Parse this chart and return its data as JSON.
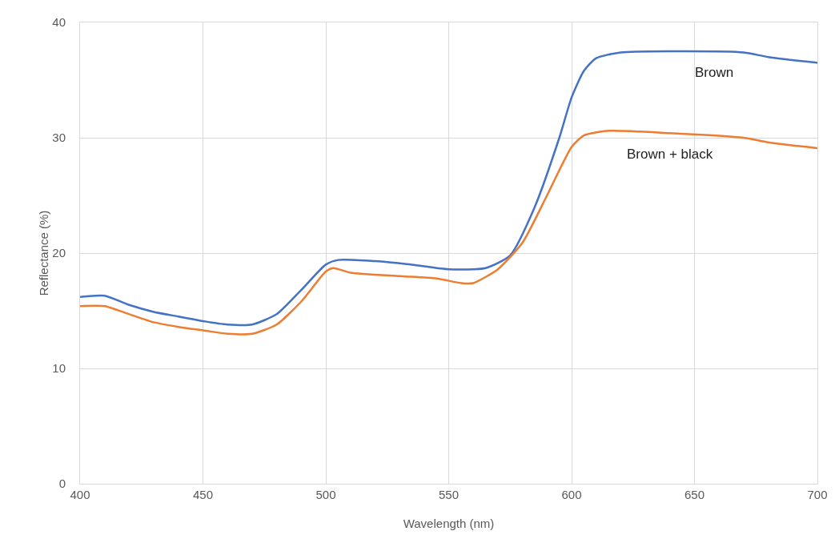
{
  "chart_data": {
    "type": "line",
    "xlabel": "Wavelength (nm)",
    "ylabel": "Reflectance (%)",
    "xlim": [
      400,
      700
    ],
    "xticks": [
      400,
      450,
      500,
      550,
      600,
      650,
      700
    ],
    "ylim": [
      0,
      40
    ],
    "yticks": [
      0,
      10,
      20,
      30,
      40
    ],
    "grid": true,
    "legend": false,
    "marker": "none",
    "line_style": "solid",
    "series": [
      {
        "name": "Brown",
        "color": "#4472c4",
        "x": [
          400,
          410,
          420,
          430,
          440,
          450,
          460,
          470,
          480,
          490,
          500,
          505,
          520,
          535,
          550,
          565,
          575,
          585,
          595,
          600,
          605,
          610,
          620,
          640,
          670,
          680,
          700
        ],
        "values": [
          16.2,
          16.3,
          15.5,
          14.9,
          14.5,
          14.1,
          13.8,
          13.8,
          14.7,
          16.8,
          19.0,
          19.4,
          19.3,
          19.0,
          18.6,
          18.7,
          19.8,
          24.0,
          30.0,
          33.5,
          35.8,
          36.9,
          37.4,
          37.5,
          37.4,
          37.0,
          36.5
        ]
      },
      {
        "name": "Brown + black",
        "color": "#ed7d31",
        "x": [
          400,
          410,
          420,
          430,
          440,
          450,
          460,
          470,
          480,
          490,
          500,
          503,
          510,
          530,
          545,
          555,
          560,
          570,
          580,
          590,
          600,
          605,
          615,
          640,
          670,
          680,
          700
        ],
        "values": [
          15.4,
          15.4,
          14.7,
          14.0,
          13.6,
          13.3,
          13.0,
          13.0,
          13.8,
          15.8,
          18.4,
          18.7,
          18.3,
          18.0,
          17.8,
          17.4,
          17.4,
          18.6,
          20.9,
          25.0,
          29.2,
          30.2,
          30.6,
          30.4,
          30.0,
          29.6,
          29.1
        ]
      }
    ]
  }
}
